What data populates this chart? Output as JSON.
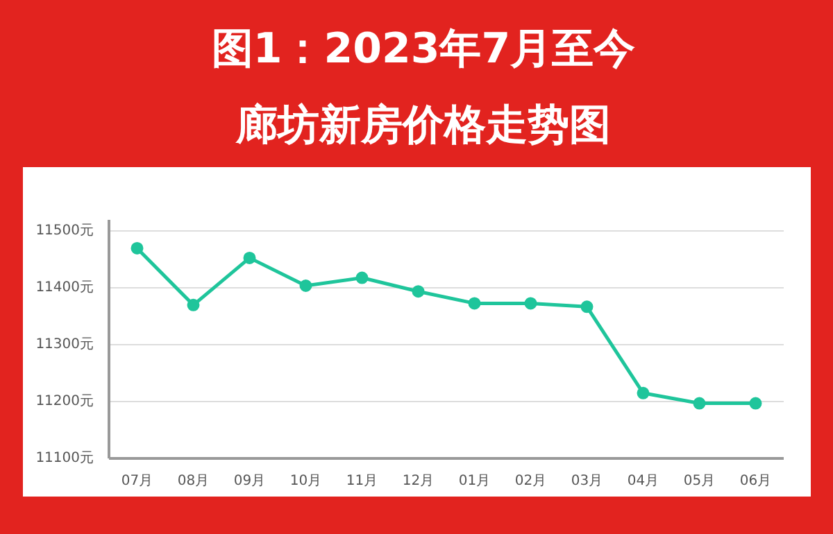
{
  "chart_data": {
    "type": "line",
    "title": "图1：2023年7月至今",
    "subtitle": "廊坊新房价格走势图",
    "categories": [
      "07月",
      "08月",
      "09月",
      "10月",
      "11月",
      "12月",
      "01月",
      "02月",
      "03月",
      "04月",
      "05月",
      "06月"
    ],
    "series": [
      {
        "color": "#1fc59b",
        "values": [
          11470,
          11370,
          11453,
          11404,
          11418,
          11394,
          11373,
          11373,
          11367,
          11215,
          11197,
          11197
        ]
      }
    ],
    "ylim": [
      11100,
      11520
    ],
    "yticks": [
      {
        "value": 11100,
        "label": "11100元"
      },
      {
        "value": 11200,
        "label": "11200元"
      },
      {
        "value": 11300,
        "label": "11300元"
      },
      {
        "value": 11400,
        "label": "11400元"
      },
      {
        "value": 11500,
        "label": "11500元"
      }
    ],
    "grid": "y",
    "marker": "circle"
  }
}
